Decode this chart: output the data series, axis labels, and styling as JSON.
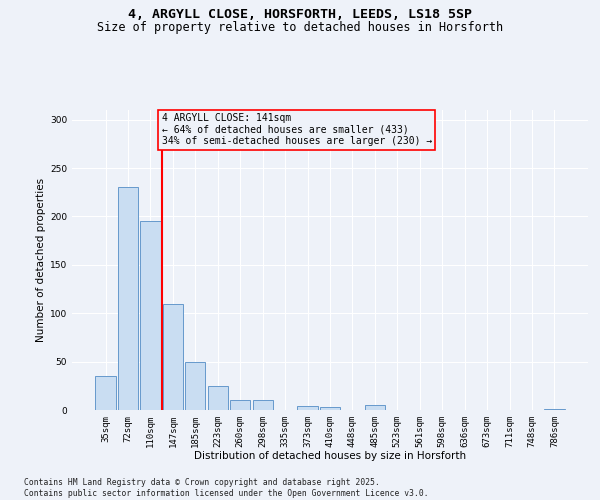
{
  "title_line1": "4, ARGYLL CLOSE, HORSFORTH, LEEDS, LS18 5SP",
  "title_line2": "Size of property relative to detached houses in Horsforth",
  "xlabel": "Distribution of detached houses by size in Horsforth",
  "ylabel": "Number of detached properties",
  "categories": [
    "35sqm",
    "72sqm",
    "110sqm",
    "147sqm",
    "185sqm",
    "223sqm",
    "260sqm",
    "298sqm",
    "335sqm",
    "373sqm",
    "410sqm",
    "448sqm",
    "485sqm",
    "523sqm",
    "561sqm",
    "598sqm",
    "636sqm",
    "673sqm",
    "711sqm",
    "748sqm",
    "786sqm"
  ],
  "values": [
    35,
    230,
    195,
    110,
    50,
    25,
    10,
    10,
    0,
    4,
    3,
    0,
    5,
    0,
    0,
    0,
    0,
    0,
    0,
    0,
    1
  ],
  "bar_color": "#c9ddf2",
  "bar_edge_color": "#6699cc",
  "vline_x": 2.5,
  "vline_color": "red",
  "annotation_text": "4 ARGYLL CLOSE: 141sqm\n← 64% of detached houses are smaller (433)\n34% of semi-detached houses are larger (230) →",
  "annotation_box_color": "red",
  "annotation_text_color": "black",
  "annotation_fontsize": 7,
  "ylim": [
    0,
    310
  ],
  "yticks": [
    0,
    50,
    100,
    150,
    200,
    250,
    300
  ],
  "background_color": "#eef2f9",
  "grid_color": "#ffffff",
  "footer": "Contains HM Land Registry data © Crown copyright and database right 2025.\nContains public sector information licensed under the Open Government Licence v3.0.",
  "title_fontsize": 9.5,
  "subtitle_fontsize": 8.5,
  "axis_label_fontsize": 7.5,
  "tick_fontsize": 6.5,
  "footer_fontsize": 5.8
}
